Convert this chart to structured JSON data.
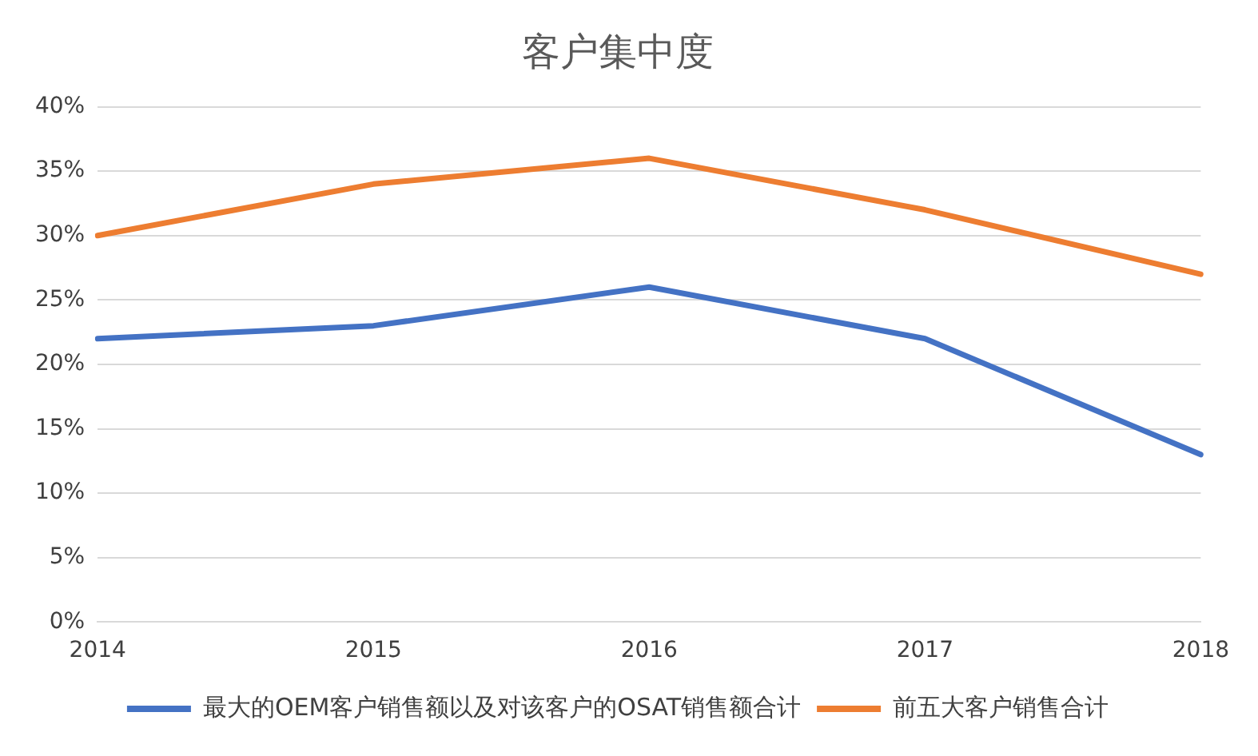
{
  "chart_data": {
    "type": "line",
    "title": "客户集中度",
    "categories": [
      "2014",
      "2015",
      "2016",
      "2017",
      "2018"
    ],
    "series": [
      {
        "name": "最大的OEM客户销售额以及对该客户的OSAT销售额合计",
        "color": "#4472c4",
        "values": [
          22,
          23,
          26,
          22,
          13
        ]
      },
      {
        "name": "前五大客户销售合计",
        "color": "#ed7d31",
        "values": [
          30,
          34,
          36,
          32,
          27
        ]
      }
    ],
    "ylim": [
      0,
      40
    ],
    "yticks": [
      {
        "value": 0,
        "label": "0%"
      },
      {
        "value": 5,
        "label": "5%"
      },
      {
        "value": 10,
        "label": "10%"
      },
      {
        "value": 15,
        "label": "15%"
      },
      {
        "value": 20,
        "label": "20%"
      },
      {
        "value": 25,
        "label": "25%"
      },
      {
        "value": 30,
        "label": "30%"
      },
      {
        "value": 35,
        "label": "35%"
      },
      {
        "value": 40,
        "label": "40%"
      }
    ],
    "grid": "y",
    "legend": "bottom",
    "marker": "none",
    "line_style": "solid"
  }
}
